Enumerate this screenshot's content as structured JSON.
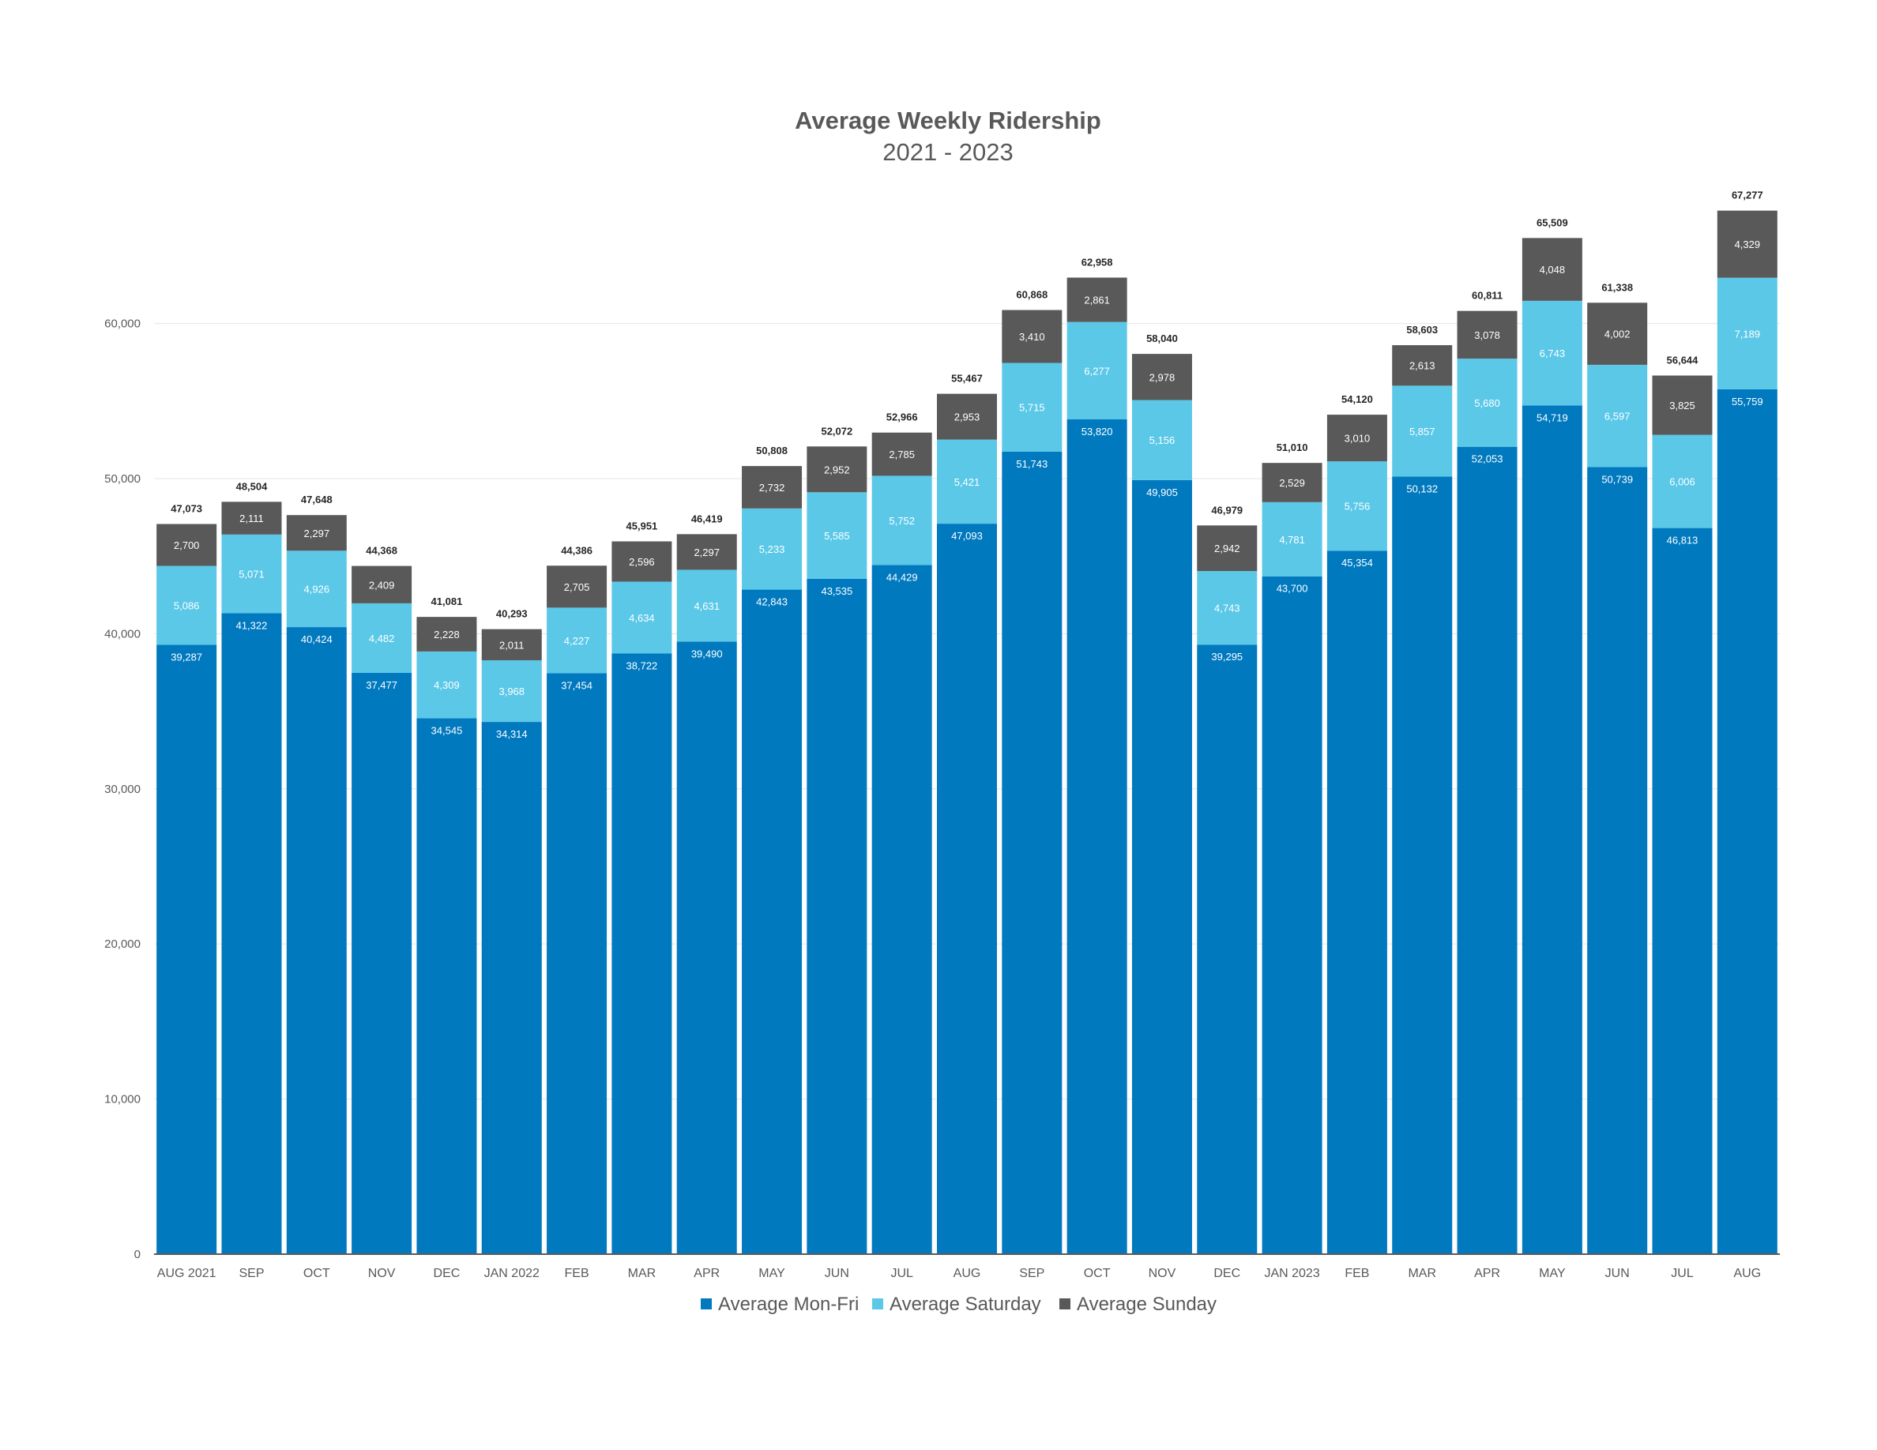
{
  "chart_data": {
    "type": "bar",
    "stacked": true,
    "title": "Average Weekly Ridership",
    "subtitle": "2021 - 2023",
    "xlabel": "",
    "ylabel": "",
    "ylim": [
      0,
      70000
    ],
    "yticks": [
      0,
      10000,
      20000,
      30000,
      40000,
      50000,
      60000
    ],
    "ytick_labels": [
      "0",
      "10,000",
      "20,000",
      "30,000",
      "40,000",
      "50,000",
      "60,000"
    ],
    "grid": true,
    "legend_position": "bottom",
    "categories": [
      "AUG 2021",
      "SEP",
      "OCT",
      "NOV",
      "DEC",
      "JAN 2022",
      "FEB",
      "MAR",
      "APR",
      "MAY",
      "JUN",
      "JUL",
      "AUG",
      "SEP",
      "OCT",
      "NOV",
      "DEC",
      "JAN 2023",
      "FEB",
      "MAR",
      "APR",
      "MAY",
      "JUN",
      "JUL",
      "AUG"
    ],
    "series": [
      {
        "name": "Average Mon-Fri",
        "color": "#0079BF",
        "values": [
          39287,
          41322,
          40424,
          37477,
          34545,
          34314,
          37454,
          38722,
          39490,
          42843,
          43535,
          44429,
          47093,
          51743,
          53820,
          49905,
          39295,
          43700,
          45354,
          50132,
          52053,
          54719,
          50739,
          46813,
          55759
        ],
        "labels": [
          "39,287",
          "41,322",
          "40,424",
          "37,477",
          "34,545",
          "34,314",
          "37,454",
          "38,722",
          "39,490",
          "42,843",
          "43,535",
          "44,429",
          "47,093",
          "51,743",
          "53,820",
          "49,905",
          "39,295",
          "43,700",
          "45,354",
          "50,132",
          "52,053",
          "54,719",
          "50,739",
          "46,813",
          "55,759"
        ]
      },
      {
        "name": "Average Saturday",
        "color": "#5BC8E8",
        "values": [
          5086,
          5071,
          4926,
          4482,
          4309,
          3968,
          4227,
          4634,
          4631,
          5233,
          5585,
          5752,
          5421,
          5715,
          6277,
          5156,
          4743,
          4781,
          5756,
          5857,
          5680,
          6743,
          6597,
          6006,
          7189
        ],
        "labels": [
          "5,086",
          "5,071",
          "4,926",
          "4,482",
          "4,309",
          "3,968",
          "4,227",
          "4,634",
          "4,631",
          "5,233",
          "5,585",
          "5,752",
          "5,421",
          "5,715",
          "6,277",
          "5,156",
          "4,743",
          "4,781",
          "5,756",
          "5,857",
          "5,680",
          "6,743",
          "6,597",
          "6,006",
          "7,189"
        ]
      },
      {
        "name": "Average Sunday",
        "color": "#595959",
        "values": [
          2700,
          2111,
          2297,
          2409,
          2228,
          2011,
          2705,
          2596,
          2297,
          2732,
          2952,
          2785,
          2953,
          3410,
          2861,
          2978,
          2942,
          2529,
          3010,
          2613,
          3078,
          4048,
          4002,
          3825,
          4329
        ],
        "labels": [
          "2,700",
          "2,111",
          "2,297",
          "2,409",
          "2,228",
          "2,011",
          "2,705",
          "2,596",
          "2,297",
          "2,732",
          "2,952",
          "2,785",
          "2,953",
          "3,410",
          "2,861",
          "2,978",
          "2,942",
          "2,529",
          "3,010",
          "2,613",
          "3,078",
          "4,048",
          "4,002",
          "3,825",
          "4,329"
        ]
      }
    ],
    "totals": [
      47073,
      48504,
      47648,
      44368,
      41081,
      40293,
      44386,
      45951,
      46419,
      50808,
      52072,
      52966,
      55467,
      60868,
      62958,
      58040,
      46979,
      51010,
      54120,
      58603,
      60811,
      65509,
      61338,
      56644,
      67277
    ],
    "total_labels": [
      "47,073",
      "48,504",
      "47,648",
      "44,368",
      "41,081",
      "40,293",
      "44,386",
      "45,951",
      "46,419",
      "50,808",
      "52,072",
      "52,966",
      "55,467",
      "60,868",
      "62,958",
      "58,040",
      "46,979",
      "51,010",
      "54,120",
      "58,603",
      "60,811",
      "65,509",
      "61,338",
      "56,644",
      "67,277"
    ]
  }
}
